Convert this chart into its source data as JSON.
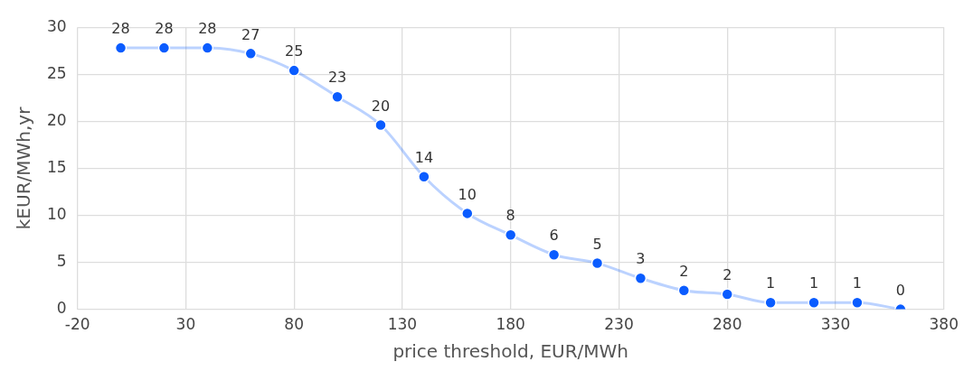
{
  "chart_data": {
    "type": "line",
    "xlabel": "price threshold, EUR/MWh",
    "ylabel": "kEUR/MWh,yr",
    "series": [
      {
        "color": "#0a5cff",
        "x": [
          0,
          20,
          40,
          60,
          80,
          100,
          120,
          140,
          160,
          180,
          200,
          220,
          240,
          260,
          280,
          300,
          320,
          340,
          360
        ],
        "values": [
          27.8,
          27.8,
          27.8,
          27.2,
          25.4,
          22.6,
          19.6,
          14.1,
          10.2,
          7.9,
          5.8,
          4.9,
          3.3,
          2.0,
          1.6,
          0.7,
          0.7,
          0.7,
          0.0
        ],
        "value_labels": [
          "28",
          "28",
          "28",
          "27",
          "25",
          "23",
          "20",
          "14",
          "10",
          "8",
          "6",
          "5",
          "3",
          "2",
          "2",
          "1",
          "1",
          "1",
          "0"
        ]
      }
    ],
    "xlim": [
      -20,
      380
    ],
    "xticks": [
      -20,
      30,
      80,
      130,
      180,
      230,
      280,
      330,
      380
    ],
    "ylim": [
      0,
      30
    ],
    "yticks": [
      0,
      5,
      10,
      15,
      20,
      25,
      30
    ],
    "grid": true,
    "legend": false,
    "marker": "circle",
    "line_style": "solid"
  }
}
